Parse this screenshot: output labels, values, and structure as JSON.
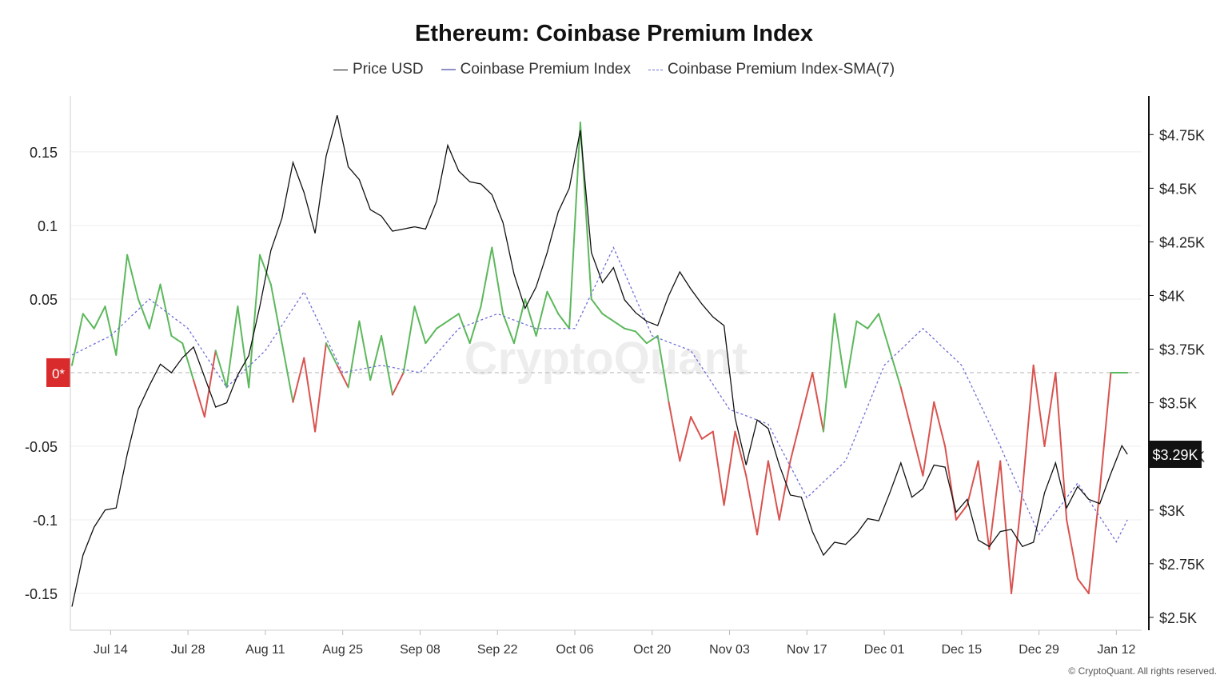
{
  "chart_data": {
    "type": "line",
    "title": "Ethereum: Coinbase Premium Index",
    "legend": [
      "Price USD",
      "Coinbase Premium Index",
      "Coinbase Premium Index-SMA(7)"
    ],
    "legend_placement": "top-center",
    "grid": true,
    "x_ticks": [
      "Jul 14",
      "Jul 28",
      "Aug 11",
      "Aug 25",
      "Sep 08",
      "Sep 22",
      "Oct 06",
      "Oct 20",
      "Nov 03",
      "Nov 17",
      "Dec 01",
      "Dec 15",
      "Dec 29",
      "Jan 12"
    ],
    "x_range": [
      "Jul 07",
      "Jan 16"
    ],
    "y_left": {
      "ticks": [
        0.15,
        0.1,
        0.05,
        "0*",
        -0.05,
        -0.1,
        -0.15
      ],
      "ylim": [
        -0.175,
        0.188
      ]
    },
    "y_right": {
      "ticks": [
        "$4.75K",
        "$4.5K",
        "$4.25K",
        "$4K",
        "$3.75K",
        "$3.5K",
        "$3.25K",
        "$3K",
        "$2.75K",
        "$2.5K"
      ],
      "ylim": [
        2440,
        4930
      ]
    },
    "zero_marker": "0*",
    "current_price_label": "$3.29K",
    "colors": {
      "price": "#111111",
      "premium_positive": "#5cb85c",
      "premium_negative": "#d9534f",
      "sma": "#6e6ed6",
      "zero_marker": "#d92b2b"
    },
    "series": [
      {
        "name": "Price USD",
        "axis": "right",
        "x": [
          "Jul 07",
          "Jul 09",
          "Jul 11",
          "Jul 13",
          "Jul 15",
          "Jul 17",
          "Jul 19",
          "Jul 21",
          "Jul 23",
          "Jul 25",
          "Jul 27",
          "Jul 29",
          "Jul 31",
          "Aug 02",
          "Aug 04",
          "Aug 06",
          "Aug 08",
          "Aug 10",
          "Aug 12",
          "Aug 14",
          "Aug 16",
          "Aug 18",
          "Aug 20",
          "Aug 22",
          "Aug 24",
          "Aug 26",
          "Aug 28",
          "Aug 30",
          "Sep 01",
          "Sep 03",
          "Sep 05",
          "Sep 07",
          "Sep 09",
          "Sep 11",
          "Sep 13",
          "Sep 15",
          "Sep 17",
          "Sep 19",
          "Sep 21",
          "Sep 23",
          "Sep 25",
          "Sep 27",
          "Sep 29",
          "Oct 01",
          "Oct 03",
          "Oct 05",
          "Oct 07",
          "Oct 09",
          "Oct 11",
          "Oct 13",
          "Oct 15",
          "Oct 17",
          "Oct 19",
          "Oct 21",
          "Oct 23",
          "Oct 25",
          "Oct 27",
          "Oct 29",
          "Oct 31",
          "Nov 02",
          "Nov 04",
          "Nov 06",
          "Nov 08",
          "Nov 10",
          "Nov 12",
          "Nov 14",
          "Nov 16",
          "Nov 18",
          "Nov 20",
          "Nov 22",
          "Nov 24",
          "Nov 26",
          "Nov 28",
          "Nov 30",
          "Dec 02",
          "Dec 04",
          "Dec 06",
          "Dec 08",
          "Dec 10",
          "Dec 12",
          "Dec 14",
          "Dec 16",
          "Dec 18",
          "Dec 20",
          "Dec 22",
          "Dec 24",
          "Dec 26",
          "Dec 28",
          "Dec 30",
          "Jan 01",
          "Jan 03",
          "Jan 05",
          "Jan 07",
          "Jan 09",
          "Jan 11",
          "Jan 13",
          "Jan 14"
        ],
        "values": [
          2550,
          2790,
          2920,
          3000,
          3010,
          3260,
          3470,
          3580,
          3680,
          3640,
          3710,
          3760,
          3620,
          3480,
          3500,
          3630,
          3720,
          3950,
          4210,
          4360,
          4620,
          4480,
          4290,
          4650,
          4840,
          4600,
          4540,
          4400,
          4370,
          4300,
          4310,
          4320,
          4310,
          4440,
          4700,
          4580,
          4530,
          4520,
          4470,
          4340,
          4100,
          3940,
          4040,
          4200,
          4390,
          4500,
          4770,
          4200,
          4060,
          4130,
          3980,
          3920,
          3880,
          3860,
          4000,
          4110,
          4030,
          3960,
          3900,
          3860,
          3430,
          3210,
          3420,
          3380,
          3210,
          3070,
          3060,
          2900,
          2790,
          2850,
          2840,
          2890,
          2960,
          2950,
          3080,
          3220,
          3060,
          3100,
          3210,
          3200,
          2990,
          3050,
          2860,
          2830,
          2900,
          2910,
          2830,
          2850,
          3080,
          3220,
          3010,
          3110,
          3050,
          3030,
          3170,
          3300,
          3260
        ]
      },
      {
        "name": "Coinbase Premium Index",
        "axis": "left",
        "x": [
          "Jul 07",
          "Jul 09",
          "Jul 11",
          "Jul 13",
          "Jul 15",
          "Jul 17",
          "Jul 19",
          "Jul 21",
          "Jul 23",
          "Jul 25",
          "Jul 27",
          "Jul 29",
          "Jul 31",
          "Aug 02",
          "Aug 04",
          "Aug 06",
          "Aug 08",
          "Aug 10",
          "Aug 12",
          "Aug 14",
          "Aug 16",
          "Aug 18",
          "Aug 20",
          "Aug 22",
          "Aug 24",
          "Aug 26",
          "Aug 28",
          "Aug 30",
          "Sep 01",
          "Sep 03",
          "Sep 05",
          "Sep 07",
          "Sep 09",
          "Sep 11",
          "Sep 13",
          "Sep 15",
          "Sep 17",
          "Sep 19",
          "Sep 21",
          "Sep 23",
          "Sep 25",
          "Sep 27",
          "Sep 29",
          "Oct 01",
          "Oct 03",
          "Oct 05",
          "Oct 07",
          "Oct 09",
          "Oct 11",
          "Oct 13",
          "Oct 15",
          "Oct 17",
          "Oct 19",
          "Oct 21",
          "Oct 23",
          "Oct 25",
          "Oct 27",
          "Oct 29",
          "Oct 31",
          "Nov 02",
          "Nov 04",
          "Nov 06",
          "Nov 08",
          "Nov 10",
          "Nov 12",
          "Nov 14",
          "Nov 16",
          "Nov 18",
          "Nov 20",
          "Nov 22",
          "Nov 24",
          "Nov 26",
          "Nov 28",
          "Nov 30",
          "Dec 02",
          "Dec 04",
          "Dec 06",
          "Dec 08",
          "Dec 10",
          "Dec 12",
          "Dec 14",
          "Dec 16",
          "Dec 18",
          "Dec 20",
          "Dec 22",
          "Dec 24",
          "Dec 26",
          "Dec 28",
          "Dec 30",
          "Jan 01",
          "Jan 03",
          "Jan 05",
          "Jan 07",
          "Jan 09",
          "Jan 11",
          "Jan 13",
          "Jan 14"
        ],
        "values": [
          0.005,
          0.04,
          0.03,
          0.045,
          0.012,
          0.08,
          0.05,
          0.03,
          0.06,
          0.025,
          0.02,
          -0.005,
          -0.03,
          0.015,
          -0.01,
          0.045,
          -0.01,
          0.08,
          0.06,
          0.02,
          -0.02,
          0.01,
          -0.04,
          0.02,
          0.005,
          -0.01,
          0.035,
          -0.005,
          0.025,
          -0.015,
          0.0,
          0.045,
          0.02,
          0.03,
          0.035,
          0.04,
          0.02,
          0.045,
          0.085,
          0.04,
          0.02,
          0.05,
          0.025,
          0.055,
          0.04,
          0.03,
          0.17,
          0.05,
          0.04,
          0.035,
          0.03,
          0.028,
          0.02,
          0.025,
          -0.02,
          -0.06,
          -0.03,
          -0.045,
          -0.04,
          -0.09,
          -0.04,
          -0.07,
          -0.11,
          -0.06,
          -0.1,
          -0.06,
          -0.03,
          0.0,
          -0.04,
          0.04,
          -0.01,
          0.035,
          0.03,
          0.04,
          0.015,
          -0.01,
          -0.04,
          -0.07,
          -0.02,
          -0.05,
          -0.1,
          -0.09,
          -0.06,
          -0.12,
          -0.06,
          -0.15,
          -0.08,
          0.005,
          -0.05,
          0.0,
          -0.1,
          -0.14,
          -0.15,
          -0.08,
          0.0,
          0.0,
          0.0
        ]
      },
      {
        "name": "Coinbase Premium Index-SMA(7)",
        "axis": "left",
        "x": [
          "Jul 07",
          "Jul 14",
          "Jul 21",
          "Jul 28",
          "Aug 04",
          "Aug 11",
          "Aug 18",
          "Aug 25",
          "Sep 01",
          "Sep 08",
          "Sep 15",
          "Sep 22",
          "Sep 29",
          "Oct 06",
          "Oct 13",
          "Oct 20",
          "Oct 27",
          "Nov 03",
          "Nov 10",
          "Nov 17",
          "Nov 24",
          "Dec 01",
          "Dec 08",
          "Dec 15",
          "Dec 22",
          "Dec 29",
          "Jan 05",
          "Jan 12",
          "Jan 14"
        ],
        "values": [
          0.012,
          0.025,
          0.05,
          0.03,
          -0.01,
          0.015,
          0.055,
          0.0,
          0.005,
          0.0,
          0.03,
          0.04,
          0.03,
          0.03,
          0.085,
          0.025,
          0.015,
          -0.025,
          -0.035,
          -0.085,
          -0.06,
          0.005,
          0.03,
          0.005,
          -0.05,
          -0.11,
          -0.075,
          -0.115,
          -0.1
        ]
      }
    ]
  },
  "footer": {
    "copyright": "© CryptoQuant. All rights reserved."
  },
  "watermark": "CryptoQuant"
}
